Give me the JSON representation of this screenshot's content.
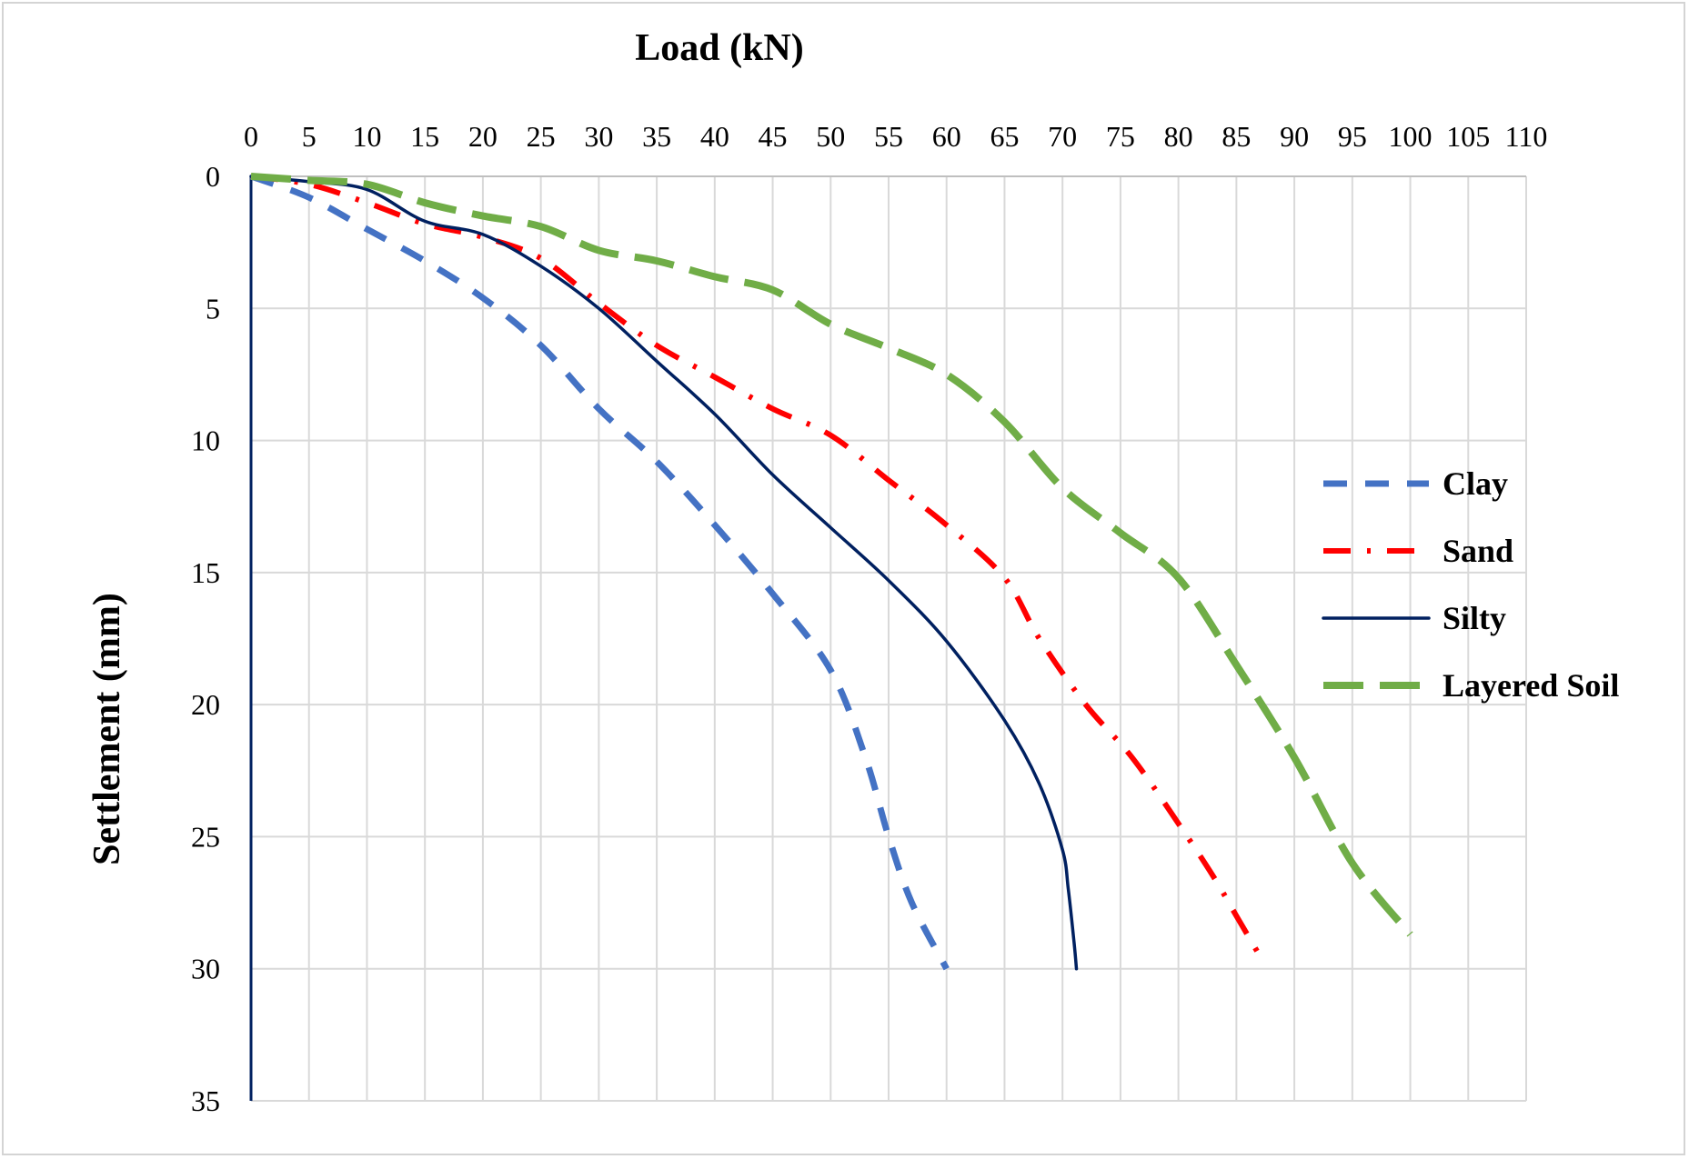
{
  "chart_data": {
    "type": "line",
    "xlabel": "Load (kN)",
    "ylabel": "Settlement (mm)",
    "x_axis_position": "top",
    "y_axis_reversed": true,
    "xlim": [
      0,
      110
    ],
    "ylim": [
      0,
      35
    ],
    "x_ticks": [
      "0",
      "5",
      "10",
      "15",
      "20",
      "25",
      "30",
      "35",
      "40",
      "45",
      "50",
      "55",
      "60",
      "65",
      "70",
      "75",
      "80",
      "85",
      "90",
      "95",
      "100",
      "105",
      "110"
    ],
    "y_ticks": [
      "0",
      "5",
      "10",
      "15",
      "20",
      "25",
      "30",
      "35"
    ],
    "grid": true,
    "legend_position": "right",
    "series": [
      {
        "name": "Clay",
        "color": "#4472c4",
        "dash": "dashed",
        "points": [
          [
            0,
            0
          ],
          [
            5,
            0.8
          ],
          [
            10,
            2.0
          ],
          [
            15,
            3.2
          ],
          [
            20,
            4.6
          ],
          [
            25,
            6.4
          ],
          [
            30,
            8.8
          ],
          [
            35,
            10.8
          ],
          [
            40,
            13.2
          ],
          [
            45,
            15.8
          ],
          [
            50,
            18.7
          ],
          [
            53,
            22.0
          ],
          [
            55,
            25.0
          ],
          [
            57,
            27.5
          ],
          [
            60,
            30.0
          ]
        ]
      },
      {
        "name": "Sand",
        "color": "#ff0000",
        "dash": "dash-dot",
        "points": [
          [
            0,
            0
          ],
          [
            5,
            0.3
          ],
          [
            10,
            1.0
          ],
          [
            15,
            1.8
          ],
          [
            20,
            2.3
          ],
          [
            25,
            3.1
          ],
          [
            30,
            4.8
          ],
          [
            35,
            6.4
          ],
          [
            40,
            7.6
          ],
          [
            45,
            8.8
          ],
          [
            50,
            9.8
          ],
          [
            55,
            11.5
          ],
          [
            60,
            13.2
          ],
          [
            65,
            15.2
          ],
          [
            68,
            17.5
          ],
          [
            72,
            20.0
          ],
          [
            76,
            22.0
          ],
          [
            80,
            24.5
          ],
          [
            83,
            26.5
          ],
          [
            85,
            28.0
          ],
          [
            87,
            29.5
          ]
        ]
      },
      {
        "name": "Silty",
        "color": "#002060",
        "dash": "solid",
        "points": [
          [
            0,
            0
          ],
          [
            5,
            0.2
          ],
          [
            10,
            0.5
          ],
          [
            15,
            1.7
          ],
          [
            20,
            2.2
          ],
          [
            25,
            3.4
          ],
          [
            30,
            5.0
          ],
          [
            35,
            7.0
          ],
          [
            40,
            9.0
          ],
          [
            45,
            11.3
          ],
          [
            50,
            13.3
          ],
          [
            55,
            15.3
          ],
          [
            60,
            17.6
          ],
          [
            65,
            20.6
          ],
          [
            68,
            23.0
          ],
          [
            70,
            25.5
          ],
          [
            70.5,
            27.0
          ],
          [
            71,
            29.0
          ],
          [
            71.2,
            30.0
          ]
        ]
      },
      {
        "name": "Layered Soil",
        "color": "#70ad47",
        "dash": "long-dash",
        "points": [
          [
            0,
            0
          ],
          [
            5,
            0.15
          ],
          [
            10,
            0.3
          ],
          [
            15,
            1.0
          ],
          [
            20,
            1.5
          ],
          [
            25,
            1.9
          ],
          [
            30,
            2.8
          ],
          [
            35,
            3.2
          ],
          [
            40,
            3.8
          ],
          [
            45,
            4.3
          ],
          [
            50,
            5.6
          ],
          [
            55,
            6.5
          ],
          [
            60,
            7.5
          ],
          [
            65,
            9.3
          ],
          [
            70,
            11.8
          ],
          [
            75,
            13.5
          ],
          [
            80,
            15.2
          ],
          [
            85,
            18.5
          ],
          [
            90,
            22.0
          ],
          [
            95,
            26.0
          ],
          [
            100,
            28.7
          ]
        ]
      }
    ]
  }
}
